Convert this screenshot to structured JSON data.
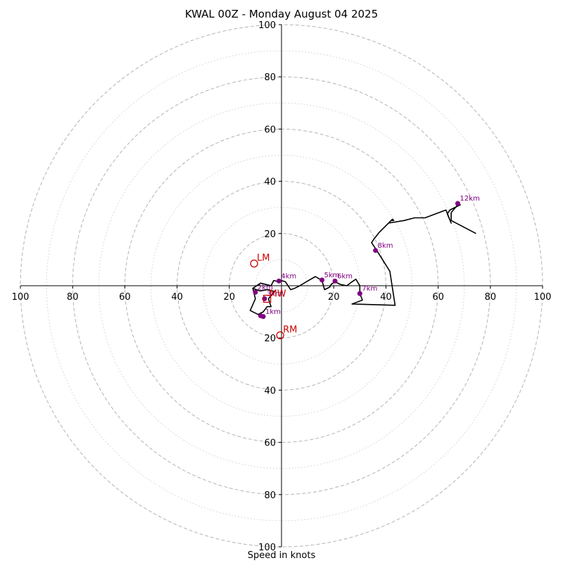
{
  "chart_data": {
    "type": "hodograph",
    "title": "KWAL 00Z - Monday August 04 2025",
    "xlabel": "Speed in knots",
    "ylabel": "",
    "xlim": [
      -100,
      100
    ],
    "ylim": [
      -100,
      100
    ],
    "tick_labels": [
      "100",
      "80",
      "60",
      "40",
      "20",
      "20",
      "40",
      "60",
      "80",
      "100"
    ],
    "rings_major": [
      20,
      40,
      60,
      80,
      100
    ],
    "rings_minor": [
      10,
      30,
      50,
      70,
      90
    ],
    "hodograph_path": [
      [
        -5.0,
        -5.0
      ],
      [
        -2.7,
        -2.2
      ],
      [
        -5.3,
        -1.5
      ],
      [
        -8.3,
        -2.0
      ],
      [
        -11.0,
        -1.0
      ],
      [
        -8.0,
        1.0
      ],
      [
        -4.0,
        0.0
      ],
      [
        -3.0,
        2.0
      ],
      [
        -1.0,
        1.5
      ],
      [
        0.0,
        2.0
      ],
      [
        1.5,
        1.5
      ],
      [
        3.5,
        -1.5
      ],
      [
        5.0,
        -1.0
      ],
      [
        7.0,
        0.0
      ],
      [
        10.0,
        1.8
      ],
      [
        13.0,
        3.5
      ],
      [
        15.5,
        2.0
      ],
      [
        16.5,
        -1.5
      ],
      [
        18.5,
        -0.5
      ],
      [
        19.0,
        0.5
      ],
      [
        20.5,
        1.5
      ],
      [
        22.5,
        0.5
      ],
      [
        25.0,
        0.0
      ],
      [
        27.0,
        1.5
      ],
      [
        28.5,
        2.5
      ],
      [
        30.0,
        0.0
      ],
      [
        30.0,
        -3.0
      ],
      [
        31.0,
        -5.5
      ],
      [
        27.0,
        -7.0
      ],
      [
        43.5,
        -7.5
      ],
      [
        41.5,
        5.5
      ],
      [
        36.5,
        13.5
      ],
      [
        34.5,
        16.5
      ],
      [
        35.5,
        18.0
      ],
      [
        37.5,
        20.5
      ],
      [
        42.0,
        25.0
      ],
      [
        43.0,
        25.0
      ],
      [
        42.5,
        25.5
      ],
      [
        41.0,
        24.0
      ],
      [
        47.0,
        25.0
      ],
      [
        51.0,
        26.0
      ],
      [
        55.0,
        26.0
      ],
      [
        63.0,
        29.0
      ],
      [
        65.0,
        24.0
      ],
      [
        63.5,
        27.5
      ],
      [
        64.5,
        29.0
      ],
      [
        68.5,
        31.0
      ],
      [
        67.5,
        31.0
      ],
      [
        65.0,
        28.0
      ],
      [
        65.0,
        25.0
      ],
      [
        74.5,
        20.0
      ]
    ],
    "hodograph_lower_path": [
      [
        -5.0,
        -5.0
      ],
      [
        -4.0,
        -8.0
      ],
      [
        -5.5,
        -8.0
      ],
      [
        -7.0,
        -10.0
      ],
      [
        -9.0,
        -11.0
      ],
      [
        -12.0,
        -9.5
      ],
      [
        -10.0,
        -5.0
      ],
      [
        -11.0,
        -1.0
      ]
    ],
    "height_markers": [
      {
        "label": "2km",
        "u": -10.0,
        "v": -2.5
      },
      {
        "label": "3km",
        "u": -6.5,
        "v": -5.0
      },
      {
        "label": "4km",
        "u": -1.0,
        "v": 1.8
      },
      {
        "label": "",
        "u": -8.0,
        "v": -11.5
      },
      {
        "label": "1km",
        "u": -7.0,
        "v": -11.8
      },
      {
        "label": "5km",
        "u": 15.5,
        "v": 2.2
      },
      {
        "label": "6km",
        "u": 20.5,
        "v": 1.8
      },
      {
        "label": "7km",
        "u": 30.0,
        "v": -3.0
      },
      {
        "label": "8km",
        "u": 36.0,
        "v": 13.5
      },
      {
        "label": "12km",
        "u": 67.5,
        "v": 31.5
      }
    ],
    "storm_motion": [
      {
        "label": "LM",
        "u": -10.5,
        "v": 8.5,
        "shape": "circle"
      },
      {
        "label": "RM",
        "u": -0.5,
        "v": -19.0,
        "shape": "circle"
      },
      {
        "label": "MW",
        "u": -5.5,
        "v": -5.0,
        "shape": "square"
      }
    ],
    "colors": {
      "line": "#000000",
      "markers": "#800080",
      "storm_motion": "#cc0000",
      "grid": "#b3b3b3"
    },
    "grid": true
  }
}
